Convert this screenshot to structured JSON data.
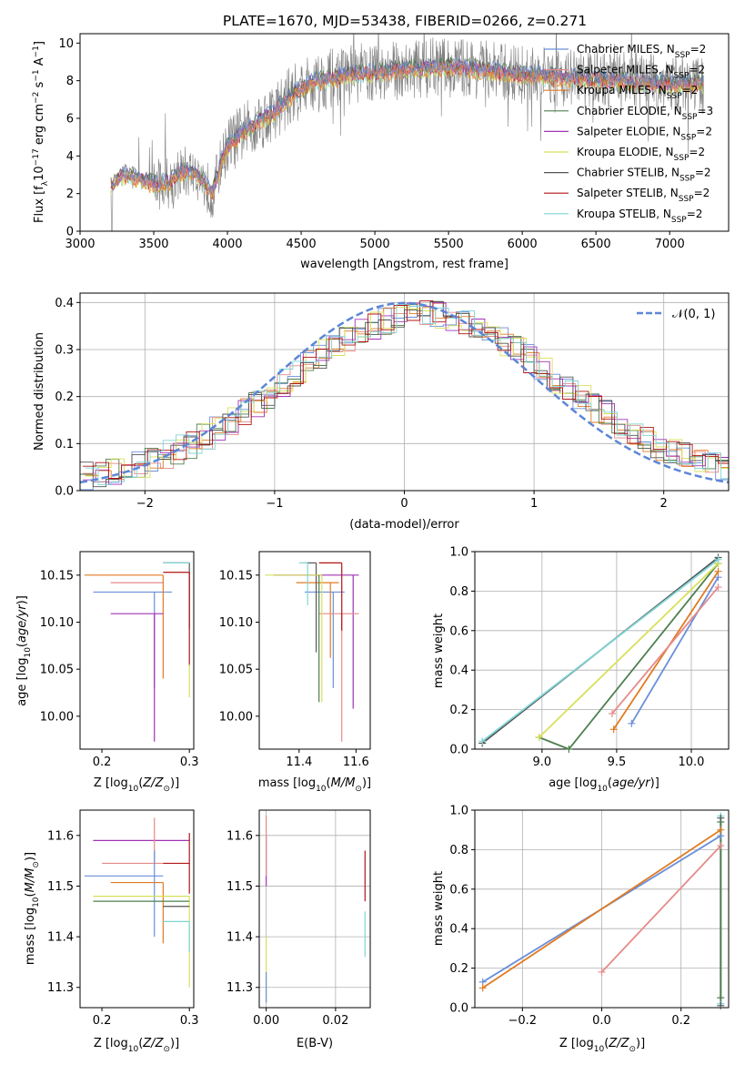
{
  "figure_title": "PLATE=1670, MJD=53438, FIBERID=0266, z=0.271",
  "series_colors": {
    "chabrier_miles": "#6b8fd9",
    "salpeter_miles": "#e68a8a",
    "kroupa_miles": "#e07b22",
    "chabrier_elodie": "#4f7f4f",
    "salpeter_elodie": "#a233b5",
    "kroupa_elodie": "#d8e05a",
    "chabrier_stelib": "#555555",
    "salpeter_stelib": "#b01515",
    "kroupa_stelib": "#7fd6d6",
    "data": "#808080",
    "gaussian": "#5b86d6"
  },
  "chart_data": [
    {
      "id": "spectrum",
      "type": "line",
      "xlabel": "wavelength [Angstrom, rest frame]",
      "ylabel": "Flux [f_λ 10^-17 erg cm^-2 s^-1 A^-1]",
      "xlim": [
        3000,
        7400
      ],
      "ylim": [
        0,
        10.5
      ],
      "xticks": [
        3000,
        3500,
        4000,
        4500,
        5000,
        5500,
        6000,
        6500,
        7000
      ],
      "yticks": [
        0,
        2,
        4,
        6,
        8,
        10
      ],
      "legend_position": "right",
      "legend": [
        "Chabrier MILES, N_SSP=2",
        "Salpeter MILES, N_SSP=2",
        "Kroupa MILES, N_SSP=2",
        "Chabrier ELODIE, N_SSP=3",
        "Salpeter ELODIE, N_SSP=2",
        "Kroupa ELODIE, N_SSP=2",
        "Chabrier STELIB, N_SSP=2",
        "Salpeter STELIB, N_SSP=2",
        "Kroupa STELIB, N_SSP=2"
      ],
      "model_continuum": {
        "x": [
          3210,
          3300,
          3400,
          3500,
          3600,
          3700,
          3800,
          3900,
          3950,
          4000,
          4100,
          4200,
          4300,
          4400,
          4500,
          4600,
          4700,
          4800,
          4900,
          5000,
          5200,
          5400,
          5600,
          5800,
          6000,
          6200,
          6400,
          6600,
          6800,
          7000,
          7200
        ],
        "y": [
          2.4,
          3.0,
          2.8,
          2.5,
          2.6,
          3.2,
          3.0,
          2.0,
          3.5,
          4.5,
          5.2,
          5.8,
          6.2,
          7.0,
          7.6,
          8.0,
          8.1,
          8.3,
          8.4,
          8.4,
          8.6,
          8.7,
          8.7,
          8.5,
          8.3,
          8.2,
          8.1,
          8.0,
          7.9,
          7.8,
          7.8
        ]
      }
    },
    {
      "id": "residuals",
      "type": "histogram",
      "xlabel": "(data-model)/error",
      "ylabel": "Normed distribution",
      "xlim": [
        -2.5,
        2.5
      ],
      "ylim": [
        0,
        0.42
      ],
      "xticks": [
        -2,
        -1,
        0,
        1,
        2
      ],
      "yticks": [
        0.0,
        0.1,
        0.2,
        0.3,
        0.4
      ],
      "legend": [
        "N(0,1)"
      ],
      "legend_position": "top-right",
      "grid": true
    },
    {
      "id": "age_vs_Z",
      "type": "errorbar",
      "xlabel": "Z [log10(Z/Z_sun)]",
      "ylabel": "age [log10(age/yr)]",
      "xlim": [
        0.175,
        0.305
      ],
      "ylim": [
        9.965,
        10.175
      ],
      "xticks": [
        0.2,
        0.3
      ],
      "yticks": [
        10.0,
        10.05,
        10.1,
        10.15
      ],
      "points": [
        {
          "series": "chabrier_miles",
          "x": 0.26,
          "y": 10.132,
          "xerr_lo": 0.07,
          "xerr_hi": 0.02,
          "yerr_lo": 0.102,
          "yerr_hi": 0.0
        },
        {
          "series": "salpeter_miles",
          "x": 0.27,
          "y": 10.142,
          "xerr_lo": 0.06,
          "xerr_hi": 0.0,
          "yerr_lo": 0.0,
          "yerr_hi": 0.0
        },
        {
          "series": "kroupa_miles",
          "x": 0.27,
          "y": 10.15,
          "xerr_lo": 0.09,
          "xerr_hi": 0.0,
          "yerr_lo": 0.11,
          "yerr_hi": 0.0
        },
        {
          "series": "salpeter_elodie",
          "x": 0.26,
          "y": 10.109,
          "xerr_lo": 0.05,
          "xerr_hi": 0.01,
          "yerr_lo": 0.136,
          "yerr_hi": 0.0
        },
        {
          "series": "chabrier_stelib",
          "x": 0.3,
          "y": 10.163,
          "xerr_lo": 0.03,
          "xerr_hi": 0.0,
          "yerr_lo": 0.07,
          "yerr_hi": 0.0
        },
        {
          "series": "salpeter_stelib",
          "x": 0.3,
          "y": 10.153,
          "xerr_lo": 0.03,
          "xerr_hi": 0.0,
          "yerr_lo": 0.1,
          "yerr_hi": 0.0
        },
        {
          "series": "kroupa_elodie",
          "x": 0.3,
          "y": 10.055,
          "xerr_lo": 0.0,
          "xerr_hi": 0.0,
          "yerr_lo": 0.035,
          "yerr_hi": 0.0
        },
        {
          "series": "kroupa_stelib",
          "x": 0.3,
          "y": 10.163,
          "xerr_lo": 0.03,
          "xerr_hi": 0.0,
          "yerr_lo": 0.0,
          "yerr_hi": 0.0
        }
      ]
    },
    {
      "id": "age_vs_mass",
      "type": "errorbar",
      "xlabel": "mass [log10(M/M_sun)]",
      "ylabel": "",
      "xlim": [
        11.26,
        11.65
      ],
      "ylim": [
        9.965,
        10.175
      ],
      "xticks": [
        11.4,
        11.6
      ],
      "yticks": [
        10.0,
        10.05,
        10.1,
        10.15
      ],
      "points": [
        {
          "series": "chabrier_miles",
          "x": 11.52,
          "y": 10.132,
          "xerr_lo": 0.1,
          "xerr_hi": 0.04,
          "yerr_lo": 0.102,
          "yerr_hi": 0.0
        },
        {
          "series": "kroupa_miles",
          "x": 11.51,
          "y": 10.142,
          "xerr_lo": 0.12,
          "xerr_hi": 0.03,
          "yerr_lo": 0.08,
          "yerr_hi": 0.0
        },
        {
          "series": "salpeter_elodie",
          "x": 11.59,
          "y": 10.15,
          "xerr_lo": 0.28,
          "xerr_hi": 0.02,
          "yerr_lo": 0.142,
          "yerr_hi": 0.0
        },
        {
          "series": "salpeter_miles",
          "x": 11.55,
          "y": 10.109,
          "xerr_lo": 0.08,
          "xerr_hi": 0.06,
          "yerr_lo": 0.136,
          "yerr_hi": 0.0
        },
        {
          "series": "chabrier_stelib",
          "x": 11.46,
          "y": 10.163,
          "xerr_lo": 0.04,
          "xerr_hi": 0.0,
          "yerr_lo": 0.095,
          "yerr_hi": 0.0
        },
        {
          "series": "salpeter_stelib",
          "x": 11.55,
          "y": 10.163,
          "xerr_lo": 0.08,
          "xerr_hi": 0.0,
          "yerr_lo": 0.072,
          "yerr_hi": 0.0
        },
        {
          "series": "kroupa_elodie",
          "x": 11.48,
          "y": 10.15,
          "xerr_lo": 0.2,
          "xerr_hi": 0.0,
          "yerr_lo": 0.135,
          "yerr_hi": 0.0
        },
        {
          "series": "chabrier_elodie",
          "x": 11.47,
          "y": 10.15,
          "xerr_lo": 0.0,
          "xerr_hi": 0.0,
          "yerr_lo": 0.135,
          "yerr_hi": 0.0
        },
        {
          "series": "kroupa_stelib",
          "x": 11.43,
          "y": 10.163,
          "xerr_lo": 0.03,
          "xerr_hi": 0.0,
          "yerr_lo": 0.045,
          "yerr_hi": 0.0
        }
      ]
    },
    {
      "id": "weight_vs_age",
      "type": "line",
      "xlabel": "age [log10(age/yr)]",
      "ylabel": "mass weight",
      "xlim": [
        8.55,
        10.25
      ],
      "ylim": [
        0,
        1.0
      ],
      "xticks": [
        9.0,
        9.5,
        10.0
      ],
      "yticks": [
        0.0,
        0.2,
        0.4,
        0.6,
        0.8,
        1.0
      ],
      "grid": true,
      "series": [
        {
          "series": "chabrier_miles",
          "x": [
            9.6,
            10.18
          ],
          "y": [
            0.13,
            0.87
          ]
        },
        {
          "series": "kroupa_miles",
          "x": [
            9.48,
            10.18
          ],
          "y": [
            0.1,
            0.9
          ]
        },
        {
          "series": "salpeter_miles",
          "x": [
            9.47,
            10.18
          ],
          "y": [
            0.18,
            0.82
          ]
        },
        {
          "series": "chabrier_elodie",
          "x": [
            8.98,
            9.18,
            10.18
          ],
          "y": [
            0.06,
            0.0,
            0.94
          ]
        },
        {
          "series": "kroupa_elodie",
          "x": [
            8.98,
            10.18
          ],
          "y": [
            0.06,
            0.94
          ]
        },
        {
          "series": "chabrier_stelib",
          "x": [
            8.6,
            10.18
          ],
          "y": [
            0.03,
            0.97
          ]
        },
        {
          "series": "kroupa_stelib",
          "x": [
            8.6,
            10.18
          ],
          "y": [
            0.04,
            0.96
          ]
        }
      ]
    },
    {
      "id": "mass_vs_Z",
      "type": "errorbar",
      "xlabel": "Z [log10(Z/Z_sun)]",
      "ylabel": "mass [log10(M/M_sun)]",
      "xlim": [
        0.175,
        0.305
      ],
      "ylim": [
        11.26,
        11.65
      ],
      "xticks": [
        0.2,
        0.3
      ],
      "yticks": [
        11.3,
        11.4,
        11.5,
        11.6
      ],
      "points": [
        {
          "series": "salpeter_elodie",
          "x": 0.3,
          "y": 11.59,
          "xerr_lo": 0.11,
          "xerr_hi": 0.0,
          "yerr_lo": 0.0,
          "yerr_hi": 0.0
        },
        {
          "series": "salpeter_miles",
          "x": 0.26,
          "y": 11.545,
          "xerr_lo": 0.06,
          "xerr_hi": 0.01,
          "yerr_lo": 0.0,
          "yerr_hi": 0.09
        },
        {
          "series": "chabrier_miles",
          "x": 0.26,
          "y": 11.52,
          "xerr_lo": 0.08,
          "xerr_hi": 0.01,
          "yerr_lo": 0.12,
          "yerr_hi": 0.05
        },
        {
          "series": "kroupa_miles",
          "x": 0.27,
          "y": 11.507,
          "xerr_lo": 0.06,
          "xerr_hi": 0.0,
          "yerr_lo": 0.12,
          "yerr_hi": 0.0
        },
        {
          "series": "kroupa_elodie",
          "x": 0.3,
          "y": 11.48,
          "xerr_lo": 0.11,
          "xerr_hi": 0.0,
          "yerr_lo": 0.18,
          "yerr_hi": 0.0
        },
        {
          "series": "chabrier_elodie",
          "x": 0.3,
          "y": 11.47,
          "xerr_lo": 0.11,
          "xerr_hi": 0.0,
          "yerr_lo": 0.0,
          "yerr_hi": 0.0
        },
        {
          "series": "chabrier_stelib",
          "x": 0.3,
          "y": 11.46,
          "xerr_lo": 0.03,
          "xerr_hi": 0.0,
          "yerr_lo": 0.0,
          "yerr_hi": 0.0
        },
        {
          "series": "salpeter_stelib",
          "x": 0.3,
          "y": 11.545,
          "xerr_lo": 0.03,
          "xerr_hi": 0.0,
          "yerr_lo": 0.06,
          "yerr_hi": 0.06
        },
        {
          "series": "kroupa_stelib",
          "x": 0.3,
          "y": 11.43,
          "xerr_lo": 0.03,
          "xerr_hi": 0.0,
          "yerr_lo": 0.06,
          "yerr_hi": 0.0
        }
      ]
    },
    {
      "id": "mass_vs_ebv",
      "type": "errorbar",
      "xlabel": "E(B-V)",
      "ylabel": "",
      "xlim": [
        -0.002,
        0.03
      ],
      "ylim": [
        11.26,
        11.65
      ],
      "xticks": [
        0.0,
        0.02
      ],
      "yticks": [
        11.3,
        11.4,
        11.5,
        11.6
      ],
      "grid": true,
      "points": [
        {
          "series": "salpeter_elodie",
          "x": 0.0,
          "y": 11.5,
          "yerr_lo": 0.0,
          "yerr_hi": 0.1
        },
        {
          "series": "salpeter_miles",
          "x": 0.0,
          "y": 11.55,
          "yerr_lo": 0.03,
          "yerr_hi": 0.09
        },
        {
          "series": "kroupa_elodie",
          "x": 0.0,
          "y": 11.4,
          "yerr_lo": 0.13,
          "yerr_hi": 0.0
        },
        {
          "series": "chabrier_miles",
          "x": 0.0,
          "y": 11.33,
          "yerr_lo": 0.06,
          "yerr_hi": 0.0
        },
        {
          "series": "salpeter_stelib",
          "x": 0.0285,
          "y": 11.52,
          "yerr_lo": 0.05,
          "yerr_hi": 0.05
        },
        {
          "series": "kroupa_stelib",
          "x": 0.0285,
          "y": 11.41,
          "yerr_lo": 0.05,
          "yerr_hi": 0.04
        }
      ]
    },
    {
      "id": "weight_vs_Z",
      "type": "line",
      "xlabel": "Z [log10(Z/Z_sun)]",
      "ylabel": "mass weight",
      "xlim": [
        -0.32,
        0.32
      ],
      "ylim": [
        0,
        1.0
      ],
      "xticks": [
        -0.2,
        0.0,
        0.2
      ],
      "yticks": [
        0.0,
        0.2,
        0.4,
        0.6,
        0.8,
        1.0
      ],
      "grid": true,
      "series": [
        {
          "series": "chabrier_miles",
          "x": [
            -0.3,
            0.3
          ],
          "y": [
            0.13,
            0.87
          ]
        },
        {
          "series": "kroupa_miles",
          "x": [
            -0.3,
            0.3
          ],
          "y": [
            0.1,
            0.9
          ]
        },
        {
          "series": "salpeter_miles",
          "x": [
            0.0,
            0.3
          ],
          "y": [
            0.18,
            0.82
          ]
        },
        {
          "series": "kroupa_stelib",
          "x": [
            0.3,
            0.3
          ],
          "y": [
            0.02,
            0.97
          ]
        },
        {
          "series": "chabrier_stelib",
          "x": [
            0.3,
            0.3
          ],
          "y": [
            0.01,
            0.96
          ]
        },
        {
          "series": "chabrier_elodie",
          "x": [
            0.3,
            0.3
          ],
          "y": [
            0.05,
            0.94
          ]
        }
      ]
    }
  ]
}
